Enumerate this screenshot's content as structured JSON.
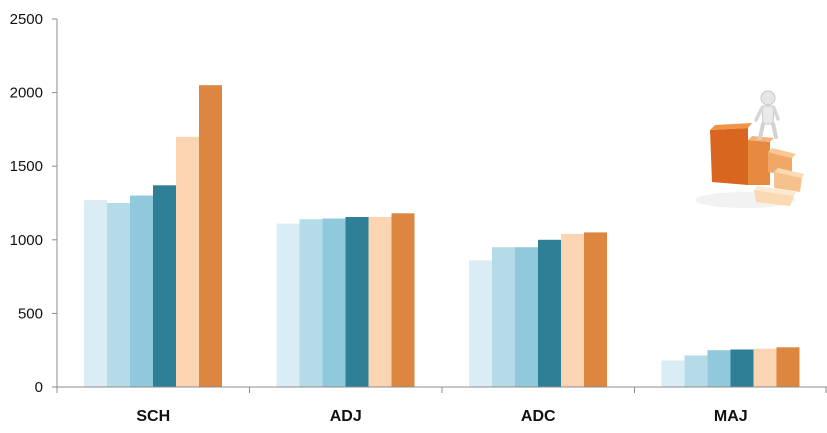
{
  "chart_data": {
    "type": "bar",
    "categories": [
      "SCH",
      "ADJ",
      "ADC",
      "MAJ"
    ],
    "series": [
      {
        "color": "#daedf5",
        "values": [
          1270,
          1110,
          860,
          180
        ]
      },
      {
        "color": "#b5dbe8",
        "values": [
          1250,
          1140,
          950,
          215
        ]
      },
      {
        "color": "#91c9dc",
        "values": [
          1300,
          1145,
          950,
          250
        ]
      },
      {
        "color": "#2f7f97",
        "values": [
          1370,
          1155,
          1000,
          255
        ]
      },
      {
        "color": "#fbd5b1",
        "values": [
          1700,
          1155,
          1040,
          260
        ]
      },
      {
        "color": "#dc8640",
        "values": [
          2050,
          1180,
          1050,
          270
        ]
      }
    ],
    "yticks": [
      0,
      500,
      1000,
      1500,
      2000,
      2500
    ],
    "ylim": [
      0,
      2500
    ],
    "grid": false,
    "legend": "none"
  },
  "decoration": {
    "icon": "person-on-staircase-icon",
    "colors": [
      "#e07a2e",
      "#f0a45c",
      "#f6c48d",
      "#fbe0c0"
    ]
  }
}
